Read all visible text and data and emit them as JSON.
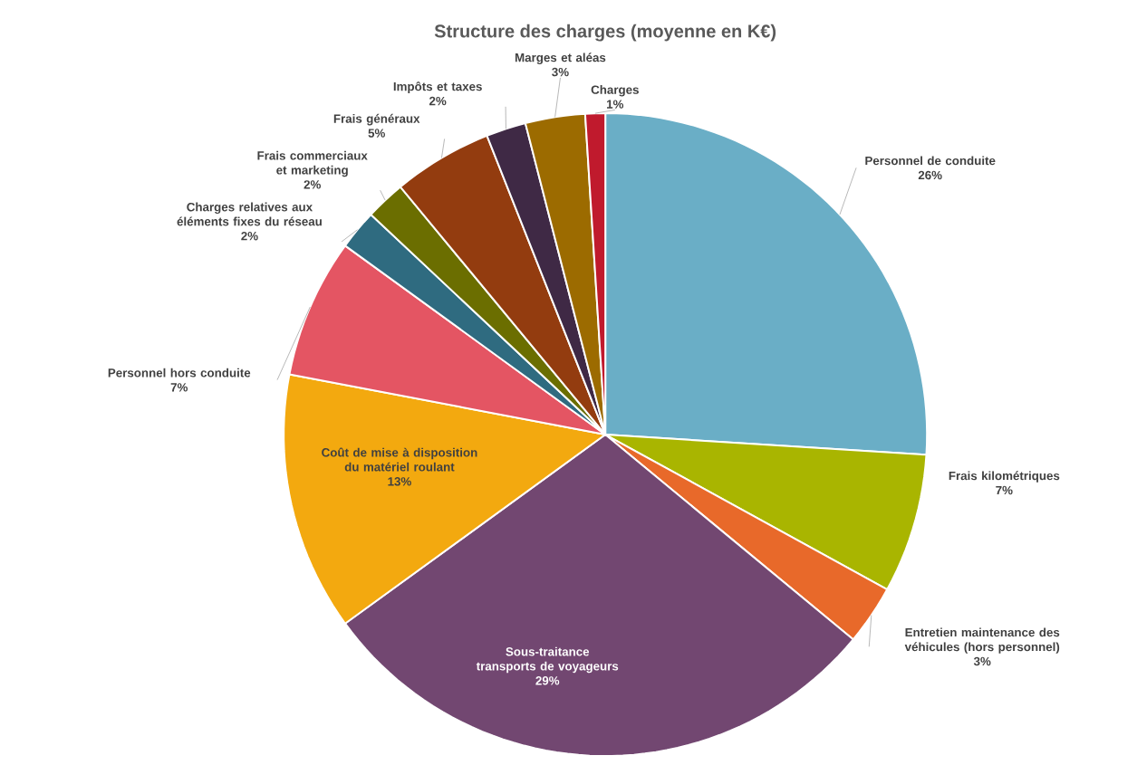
{
  "chart_data": {
    "type": "pie",
    "title": "Structure des charges (moyenne en K€)",
    "categories": [
      "Personnel de conduite",
      "Frais kilométriques",
      "Entretien maintenance des véhicules (hors personnel)",
      "Sous-traitance transports de voyageurs",
      "Coût de mise à disposition du matériel roulant",
      "Personnel hors conduite",
      "Charges relatives aux éléments fixes du réseau",
      "Frais commerciaux et marketing",
      "Frais généraux",
      "Impôts et taxes",
      "Marges et aléas",
      "Charges"
    ],
    "values": [
      26,
      7,
      3,
      29,
      13,
      7,
      2,
      2,
      5,
      2,
      3,
      1
    ],
    "value_labels": [
      "26%",
      "7%",
      "3%",
      "29%",
      "13%",
      "7%",
      "2%",
      "2%",
      "5%",
      "2%",
      "3%",
      "1%"
    ],
    "colors": [
      "#6aaec6",
      "#a9b500",
      "#e8692a",
      "#724771",
      "#f3a90f",
      "#e45563",
      "#2f6b80",
      "#6b6e00",
      "#933c0f",
      "#3f2945",
      "#9c6b00",
      "#c01a2d"
    ]
  }
}
